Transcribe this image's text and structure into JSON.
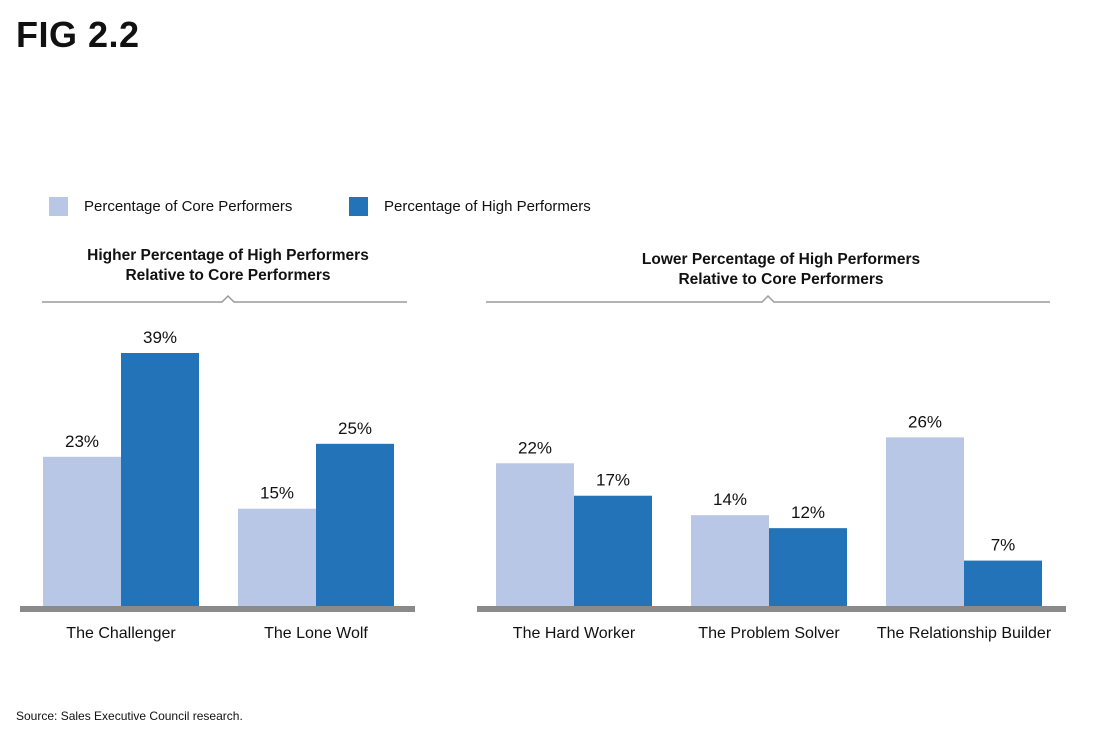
{
  "figure": {
    "title": "FIG 2.2",
    "source": "Source: Sales Executive Council research."
  },
  "colors": {
    "core": "#b8c7e6",
    "high": "#2273b7",
    "axis": "#8a8a8a",
    "bracket": "#9a9a9a"
  },
  "chart_data": {
    "type": "bar",
    "legend": {
      "placement": "top-left",
      "core_label": "Percentage of Core Performers",
      "high_label": "Percentage of High Performers"
    },
    "series": [
      {
        "name": "Percentage of Core Performers",
        "values": [
          23,
          15,
          22,
          14,
          26
        ]
      },
      {
        "name": "Percentage of High Performers",
        "values": [
          39,
          25,
          17,
          12,
          7
        ]
      }
    ],
    "categories": [
      "The Challenger",
      "The Lone Wolf",
      "The Hard Worker",
      "The Problem Solver",
      "The Relationship Builder"
    ],
    "value_labels": {
      "core": [
        "23%",
        "15%",
        "22%",
        "14%",
        "26%"
      ],
      "high": [
        "39%",
        "25%",
        "17%",
        "12%",
        "7%"
      ]
    },
    "groups": [
      {
        "title_line1": "Higher Percentage of High Performers",
        "title_line2": "Relative to Core Performers",
        "categories": [
          0,
          1
        ]
      },
      {
        "title_line1": "Lower Percentage of High Performers",
        "title_line2": "Relative to Core Performers",
        "categories": [
          2,
          3,
          4
        ]
      }
    ],
    "unit": "%",
    "ylim": [
      0,
      39
    ],
    "grid": false
  }
}
